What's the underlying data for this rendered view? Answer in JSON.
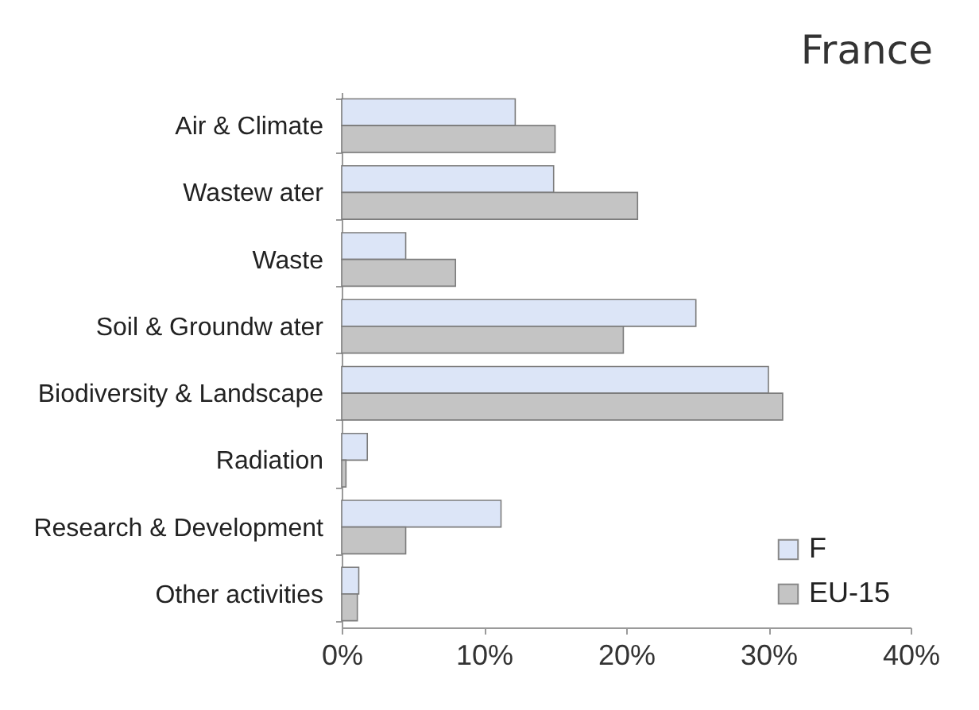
{
  "chart_data": {
    "type": "bar",
    "orientation": "horizontal",
    "title": "France",
    "categories": [
      "Air & Climate",
      "Wastew ater",
      "Waste",
      "Soil & Groundw ater",
      "Biodiversity & Landscape",
      "Radiation",
      "Research & Development",
      "Other activities"
    ],
    "series": [
      {
        "name": "F",
        "color": "#dce5f7",
        "values": [
          12.2,
          14.9,
          4.5,
          24.9,
          30.0,
          1.8,
          11.2,
          1.2
        ]
      },
      {
        "name": "EU-15",
        "color": "#c4c4c4",
        "values": [
          15.0,
          20.8,
          8.0,
          19.8,
          31.0,
          0.3,
          4.5,
          1.1
        ]
      }
    ],
    "xlim": [
      0,
      40
    ],
    "xticks": [
      {
        "value": 0,
        "label": "0%"
      },
      {
        "value": 10,
        "label": "10%"
      },
      {
        "value": 20,
        "label": "20%"
      },
      {
        "value": 30,
        "label": "30%"
      },
      {
        "value": 40,
        "label": "40%"
      }
    ],
    "grid": false,
    "legend": "bottom right"
  }
}
